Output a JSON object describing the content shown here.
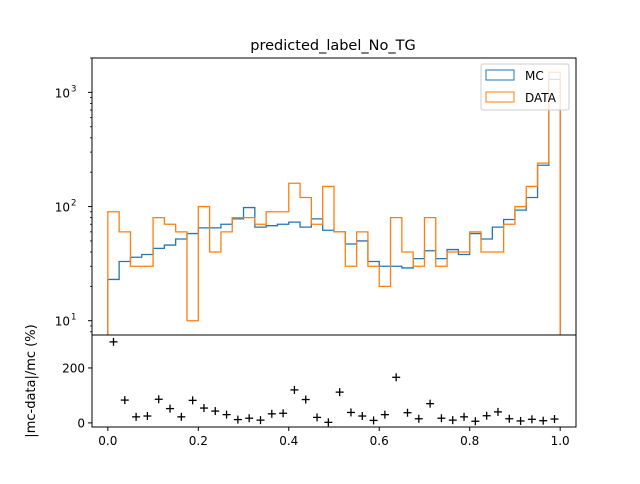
{
  "chart_data": [
    {
      "type": "step-histogram",
      "title": "predicted_label_No_TG",
      "yscale": "log",
      "ylim": [
        7.5,
        2000
      ],
      "xlim": [
        -0.035,
        1.035
      ],
      "xticks": [
        0.0,
        0.2,
        0.4,
        0.6,
        0.8,
        1.0
      ],
      "xtick_labels": [
        "0.0",
        "0.2",
        "0.4",
        "0.6",
        "0.8",
        "1.0"
      ],
      "yticks": [
        10,
        100,
        1000
      ],
      "ytick_labels": [
        "10",
        "10",
        "10"
      ],
      "ytick_exponents": [
        "1",
        "2",
        "3"
      ],
      "legend_position": "upper right",
      "bin_edges": [
        0.0,
        0.025,
        0.05,
        0.075,
        0.1,
        0.125,
        0.15,
        0.175,
        0.2,
        0.225,
        0.25,
        0.275,
        0.3,
        0.325,
        0.35,
        0.375,
        0.4,
        0.425,
        0.45,
        0.475,
        0.5,
        0.525,
        0.55,
        0.575,
        0.6,
        0.625,
        0.65,
        0.675,
        0.7,
        0.725,
        0.75,
        0.775,
        0.8,
        0.825,
        0.85,
        0.875,
        0.9,
        0.925,
        0.95,
        0.975,
        1.0
      ],
      "series": [
        {
          "name": "MC",
          "color": "#1f77b4",
          "values": [
            0,
            23,
            33,
            36,
            38,
            43,
            46,
            52,
            58,
            65,
            65,
            70,
            78,
            98,
            66,
            68,
            70,
            73,
            66,
            78,
            62,
            60,
            47,
            50,
            33,
            30,
            30,
            29,
            35,
            41,
            35,
            42,
            38,
            58,
            52,
            66,
            77,
            93,
            120,
            230,
            1300
          ]
        },
        {
          "name": "DATA",
          "color": "#ff7f0e",
          "values": [
            0,
            90,
            60,
            30,
            30,
            80,
            70,
            60,
            10,
            100,
            40,
            60,
            80,
            80,
            70,
            90,
            90,
            160,
            120,
            70,
            150,
            60,
            30,
            60,
            30,
            20,
            80,
            40,
            30,
            80,
            30,
            40,
            40,
            60,
            40,
            40,
            70,
            100,
            150,
            240,
            1500
          ]
        }
      ]
    },
    {
      "type": "scatter",
      "ylabel": "|mc-data|/mc (%)",
      "xlim": [
        -0.035,
        1.035
      ],
      "ylim": [
        -15,
        320
      ],
      "xticks": [
        0.0,
        0.2,
        0.4,
        0.6,
        0.8,
        1.0
      ],
      "xtick_labels": [
        "0.0",
        "0.2",
        "0.4",
        "0.6",
        "0.8",
        "1.0"
      ],
      "yticks": [
        0,
        200
      ],
      "ytick_labels": [
        "0",
        "200"
      ],
      "marker": "+",
      "x": [
        0.0125,
        0.0375,
        0.0625,
        0.0875,
        0.1125,
        0.1375,
        0.1625,
        0.1875,
        0.2125,
        0.2375,
        0.2625,
        0.2875,
        0.3125,
        0.3375,
        0.3625,
        0.3875,
        0.4125,
        0.4375,
        0.4625,
        0.4875,
        0.5125,
        0.5375,
        0.5625,
        0.5875,
        0.6125,
        0.6375,
        0.6625,
        0.6875,
        0.7125,
        0.7375,
        0.7625,
        0.7875,
        0.8125,
        0.8375,
        0.8625,
        0.8875,
        0.9125,
        0.9375,
        0.9625,
        0.9875
      ],
      "y": [
        295,
        83,
        22,
        25,
        86,
        52,
        22,
        82,
        54,
        43,
        30,
        12,
        17,
        10,
        33,
        35,
        120,
        85,
        20,
        2,
        112,
        38,
        25,
        9,
        30,
        166,
        37,
        15,
        70,
        17,
        10,
        22,
        6,
        26,
        40,
        15,
        7,
        13,
        8,
        14
      ]
    }
  ]
}
